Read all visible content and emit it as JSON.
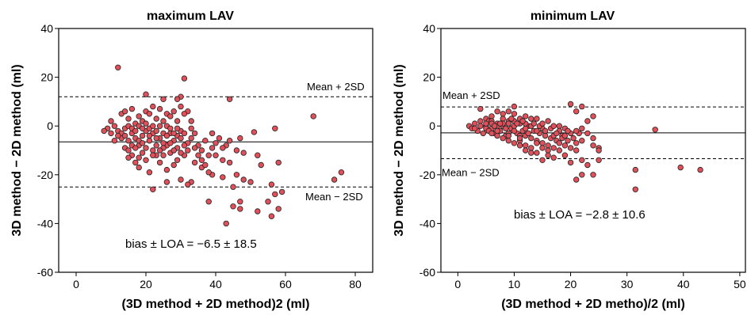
{
  "chart_data": [
    {
      "type": "scatter",
      "title": "maximum LAV",
      "xlabel": "(3D method + 2D method)2 (ml)",
      "ylabel": "3D method − 2D method (ml)",
      "xlim": [
        -5,
        85
      ],
      "ylim": [
        -60,
        40
      ],
      "xticks": [
        0,
        20,
        40,
        60,
        80
      ],
      "yticks": [
        -60,
        -40,
        -20,
        0,
        20,
        40
      ],
      "lines": {
        "upper": 12.0,
        "mean": -6.5,
        "lower": -25.0
      },
      "upper_label": "Mean + 2SD",
      "lower_label": "Mean − 2SD",
      "bias_text": "bias ± LOA = −6.5 ± 18.5",
      "marker_color": "#e0505a",
      "points": [
        [
          12,
          24
        ],
        [
          31,
          19.5
        ],
        [
          30,
          12
        ],
        [
          29,
          11
        ],
        [
          20,
          13
        ],
        [
          25,
          11
        ],
        [
          44,
          11
        ],
        [
          68,
          4
        ],
        [
          57,
          -1
        ],
        [
          51,
          -2.5
        ],
        [
          47,
          -5
        ],
        [
          44,
          -6
        ],
        [
          58,
          -15
        ],
        [
          53,
          -16
        ],
        [
          56,
          -24
        ],
        [
          57,
          -28
        ],
        [
          59,
          -27
        ],
        [
          55,
          -31
        ],
        [
          58,
          -34
        ],
        [
          56,
          -37
        ],
        [
          52,
          -35
        ],
        [
          47,
          -34
        ],
        [
          45,
          -33
        ],
        [
          43,
          -40
        ],
        [
          47,
          -31
        ],
        [
          38,
          -31
        ],
        [
          76,
          -19
        ],
        [
          74,
          -22
        ],
        [
          46,
          -20
        ],
        [
          48,
          -22
        ],
        [
          50,
          -23
        ],
        [
          45,
          -25
        ],
        [
          42,
          -21
        ],
        [
          39,
          -20
        ],
        [
          38,
          -19
        ],
        [
          36,
          -17
        ],
        [
          34,
          -15
        ],
        [
          33,
          -23
        ],
        [
          32,
          -24
        ],
        [
          30,
          -22
        ],
        [
          26,
          -23
        ],
        [
          22,
          -26
        ],
        [
          18,
          -17
        ],
        [
          16,
          -12
        ],
        [
          15,
          -13
        ],
        [
          36,
          -10
        ],
        [
          40,
          -12
        ],
        [
          44,
          -15
        ],
        [
          46,
          -10
        ],
        [
          52,
          -12
        ],
        [
          48,
          -11
        ],
        [
          35,
          -8
        ],
        [
          37,
          -6
        ],
        [
          39,
          -3
        ],
        [
          41,
          -5
        ],
        [
          43,
          -8
        ],
        [
          42,
          -14
        ],
        [
          34,
          -3
        ],
        [
          33,
          -1
        ],
        [
          33,
          2
        ],
        [
          32,
          6
        ],
        [
          32,
          -10
        ],
        [
          31,
          -12
        ],
        [
          29,
          -14
        ],
        [
          28,
          -16
        ],
        [
          27,
          -11
        ],
        [
          26,
          -18
        ],
        [
          24,
          -15
        ],
        [
          23,
          -12
        ],
        [
          21,
          -19
        ],
        [
          20,
          -14
        ],
        [
          19,
          -11
        ],
        [
          17,
          -15
        ],
        [
          14,
          -9
        ],
        [
          13,
          -5
        ],
        [
          12,
          -2
        ],
        [
          11,
          0
        ],
        [
          10,
          2
        ],
        [
          9,
          -1
        ],
        [
          8,
          -2
        ],
        [
          13,
          5
        ],
        [
          14,
          6
        ],
        [
          15,
          3
        ],
        [
          16,
          7
        ],
        [
          17,
          1
        ],
        [
          18,
          4
        ],
        [
          19,
          2
        ],
        [
          20,
          6
        ],
        [
          21,
          5
        ],
        [
          22,
          8
        ],
        [
          23,
          3
        ],
        [
          24,
          7
        ],
        [
          25,
          2
        ],
        [
          26,
          5
        ],
        [
          27,
          4
        ],
        [
          28,
          6
        ],
        [
          29,
          2
        ],
        [
          30,
          8
        ],
        [
          31,
          5
        ],
        [
          30,
          -2
        ],
        [
          29,
          -4
        ],
        [
          28,
          -6
        ],
        [
          27,
          -3
        ],
        [
          26,
          -8
        ],
        [
          25,
          -7
        ],
        [
          24,
          -5
        ],
        [
          23,
          -8
        ],
        [
          22,
          -3
        ],
        [
          21,
          -6
        ],
        [
          20,
          -2
        ],
        [
          19,
          -4
        ],
        [
          18,
          -8
        ],
        [
          17,
          -5
        ],
        [
          16,
          -3
        ],
        [
          15,
          -6
        ],
        [
          14,
          -1
        ],
        [
          13,
          -3
        ],
        [
          12,
          -4
        ],
        [
          11,
          -6
        ],
        [
          10,
          -3
        ],
        [
          15,
          0
        ],
        [
          16,
          -1
        ],
        [
          17,
          -2
        ],
        [
          18,
          0
        ],
        [
          19,
          -1
        ],
        [
          20,
          1
        ],
        [
          21,
          -1
        ],
        [
          22,
          0
        ],
        [
          23,
          -2
        ],
        [
          24,
          0
        ],
        [
          25,
          -3
        ],
        [
          26,
          0
        ],
        [
          27,
          -1
        ],
        [
          28,
          -3
        ],
        [
          29,
          -1
        ],
        [
          30,
          -5
        ],
        [
          31,
          -3
        ],
        [
          32,
          -7
        ],
        [
          33,
          -5
        ],
        [
          34,
          -9
        ],
        [
          35,
          -12
        ],
        [
          36,
          -14
        ],
        [
          37,
          -16
        ],
        [
          25,
          -12
        ],
        [
          22,
          -10
        ],
        [
          20,
          -9
        ],
        [
          18,
          -6
        ],
        [
          16,
          -8
        ],
        [
          14,
          -4
        ],
        [
          21,
          -4
        ],
        [
          23,
          -5
        ],
        [
          25,
          -9
        ],
        [
          27,
          -7
        ],
        [
          29,
          -9
        ],
        [
          31,
          -8
        ],
        [
          24,
          -10
        ],
        [
          26,
          -4
        ],
        [
          28,
          -10
        ],
        [
          30,
          -11
        ],
        [
          19,
          -7
        ],
        [
          17,
          -9
        ],
        [
          15,
          -10
        ],
        [
          22,
          -12
        ],
        [
          18,
          -13
        ],
        [
          40,
          -7
        ],
        [
          42,
          -9
        ],
        [
          38,
          -12
        ],
        [
          39,
          -9
        ]
      ]
    },
    {
      "type": "scatter",
      "title": "minimum LAV",
      "xlabel": "(3D method + 2D metho)/2 (ml)",
      "ylabel": "3D method − 2D method (ml)",
      "xlim": [
        -3,
        51
      ],
      "ylim": [
        -60,
        40
      ],
      "xticks": [
        0,
        10,
        20,
        30,
        40,
        50
      ],
      "yticks": [
        -60,
        -40,
        -20,
        0,
        20,
        40
      ],
      "lines": {
        "upper": 7.8,
        "mean": -2.8,
        "lower": -13.4
      },
      "upper_label": "Mean + 2SD",
      "lower_label": "Mean − 2SD",
      "bias_text": "bias ± LOA = −2.8 ± 10.6",
      "marker_color": "#e0505a",
      "points": [
        [
          35,
          -1.5
        ],
        [
          43,
          -18
        ],
        [
          39.5,
          -17
        ],
        [
          31.5,
          -18
        ],
        [
          31.5,
          -26
        ],
        [
          22,
          -20
        ],
        [
          24,
          -20
        ],
        [
          21,
          -22
        ],
        [
          23,
          -16
        ],
        [
          25,
          -14
        ],
        [
          22,
          -14
        ],
        [
          20,
          -15
        ],
        [
          20,
          9
        ],
        [
          22,
          8
        ],
        [
          21,
          6
        ],
        [
          24,
          4
        ],
        [
          23,
          2
        ],
        [
          25,
          -9
        ],
        [
          24,
          -8
        ],
        [
          22,
          -6
        ],
        [
          21,
          -10
        ],
        [
          19,
          -12
        ],
        [
          18,
          -10
        ],
        [
          17,
          -13
        ],
        [
          16,
          -12
        ],
        [
          15,
          -14
        ],
        [
          14,
          -11
        ],
        [
          13,
          -9
        ],
        [
          12,
          -8
        ],
        [
          11,
          -6
        ],
        [
          10,
          8
        ],
        [
          9,
          6
        ],
        [
          8,
          5
        ],
        [
          7,
          6
        ],
        [
          6,
          4
        ],
        [
          5,
          3
        ],
        [
          4,
          7
        ],
        [
          4,
          2
        ],
        [
          3,
          1
        ],
        [
          2,
          0
        ],
        [
          2.5,
          -1
        ],
        [
          3.5,
          -2
        ],
        [
          4.5,
          -3
        ],
        [
          5,
          0
        ],
        [
          5.5,
          2
        ],
        [
          6,
          -1
        ],
        [
          6.5,
          -3
        ],
        [
          7,
          1
        ],
        [
          7.5,
          -2
        ],
        [
          8,
          0
        ],
        [
          8.5,
          -4
        ],
        [
          9,
          2
        ],
        [
          9.5,
          -1
        ],
        [
          10,
          0
        ],
        [
          10.5,
          -3
        ],
        [
          11,
          1
        ],
        [
          11.5,
          -2
        ],
        [
          12,
          -4
        ],
        [
          12.5,
          0
        ],
        [
          13,
          -5
        ],
        [
          13.5,
          -2
        ],
        [
          14,
          -6
        ],
        [
          14.5,
          -3
        ],
        [
          15,
          -7
        ],
        [
          15.5,
          -4
        ],
        [
          16,
          -8
        ],
        [
          16.5,
          -5
        ],
        [
          17,
          -9
        ],
        [
          17.5,
          -6
        ],
        [
          18,
          -7
        ],
        [
          18.5,
          -4
        ],
        [
          19,
          -8
        ],
        [
          19.5,
          -6
        ],
        [
          20,
          -9
        ],
        [
          20.5,
          -5
        ],
        [
          21,
          -7
        ],
        [
          21.5,
          -3
        ],
        [
          22,
          -1
        ],
        [
          23,
          -3
        ],
        [
          24,
          -5
        ],
        [
          25,
          -10
        ],
        [
          18,
          0
        ],
        [
          16,
          2
        ],
        [
          14,
          3
        ],
        [
          12,
          4
        ],
        [
          10,
          5
        ],
        [
          8,
          3
        ],
        [
          6,
          2
        ],
        [
          7,
          -4
        ],
        [
          8,
          -5
        ],
        [
          9,
          -6
        ],
        [
          10,
          -7
        ],
        [
          11,
          -8
        ],
        [
          12,
          -10
        ],
        [
          13,
          -11
        ],
        [
          14,
          -7
        ],
        [
          15,
          -9
        ],
        [
          16,
          -10
        ],
        [
          17,
          -4
        ],
        [
          18,
          -2
        ],
        [
          19,
          -1
        ],
        [
          20,
          -3
        ],
        [
          9,
          1
        ],
        [
          10,
          -2
        ],
        [
          11,
          -4
        ],
        [
          12,
          -1
        ],
        [
          13,
          0
        ],
        [
          14,
          -2
        ],
        [
          15,
          -1
        ],
        [
          5,
          -1
        ],
        [
          6,
          1
        ],
        [
          7,
          0
        ],
        [
          8,
          1
        ],
        [
          9,
          -3
        ],
        [
          10,
          2
        ],
        [
          11,
          3
        ],
        [
          12,
          1
        ],
        [
          4,
          0
        ],
        [
          3,
          -1
        ],
        [
          5.5,
          -2
        ],
        [
          6.5,
          0
        ],
        [
          7.5,
          1
        ],
        [
          8.5,
          -1
        ],
        [
          9.5,
          3
        ],
        [
          10.5,
          1
        ],
        [
          11.5,
          2
        ],
        [
          12.5,
          -3
        ],
        [
          13.5,
          1
        ],
        [
          14.5,
          0
        ],
        [
          15.5,
          -2
        ],
        [
          16.5,
          -1
        ],
        [
          17.5,
          -3
        ],
        [
          18.5,
          -5
        ],
        [
          19.5,
          -2
        ],
        [
          13,
          3
        ],
        [
          15,
          1
        ],
        [
          17,
          0
        ],
        [
          19,
          -4
        ],
        [
          21,
          -2
        ],
        [
          11,
          -5
        ],
        [
          9,
          -4
        ],
        [
          7,
          -2
        ],
        [
          6,
          -3
        ],
        [
          5,
          1
        ]
      ]
    }
  ]
}
